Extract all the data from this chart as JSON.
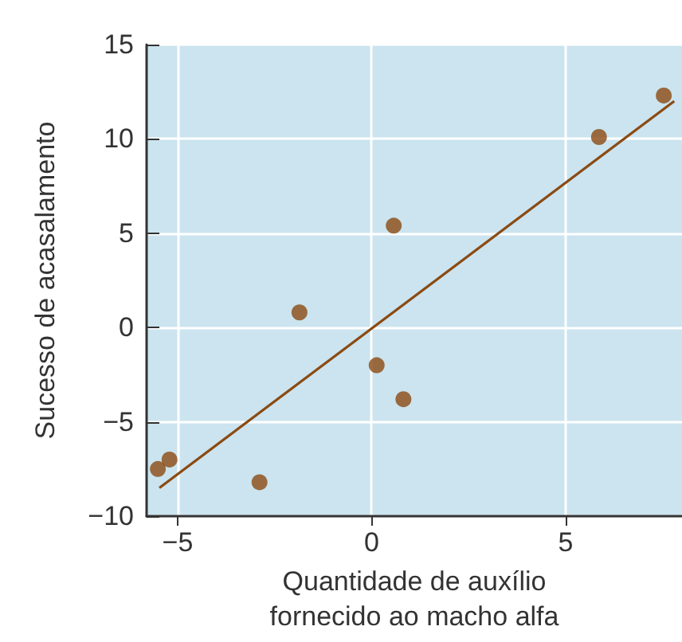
{
  "chart_data": {
    "type": "scatter",
    "xlabel": "Quantidade de auxílio\nfornecido ao macho alfa",
    "ylabel": "Sucesso de acasalamento",
    "xlim": [
      -5.8,
      8.0
    ],
    "xticks": [
      -5,
      0,
      5
    ],
    "ylim": [
      -10,
      15
    ],
    "yticks": [
      -10,
      -5,
      0,
      5,
      10,
      15
    ],
    "grid": true,
    "series": [
      {
        "color": "#8b4a12",
        "marker": "circle",
        "x": [
          -5.51,
          -5.21,
          -2.89,
          -1.86,
          0.13,
          0.57,
          0.82,
          5.86,
          7.53
        ],
        "values": [
          -7.5,
          -7.0,
          -8.2,
          0.8,
          -2.0,
          5.4,
          -3.8,
          10.1,
          12.3
        ]
      },
      {
        "type": "line",
        "color": "#8b4a12",
        "x": [
          -5.47,
          7.8
        ],
        "values": [
          -8.5,
          12.0
        ]
      }
    ]
  }
}
